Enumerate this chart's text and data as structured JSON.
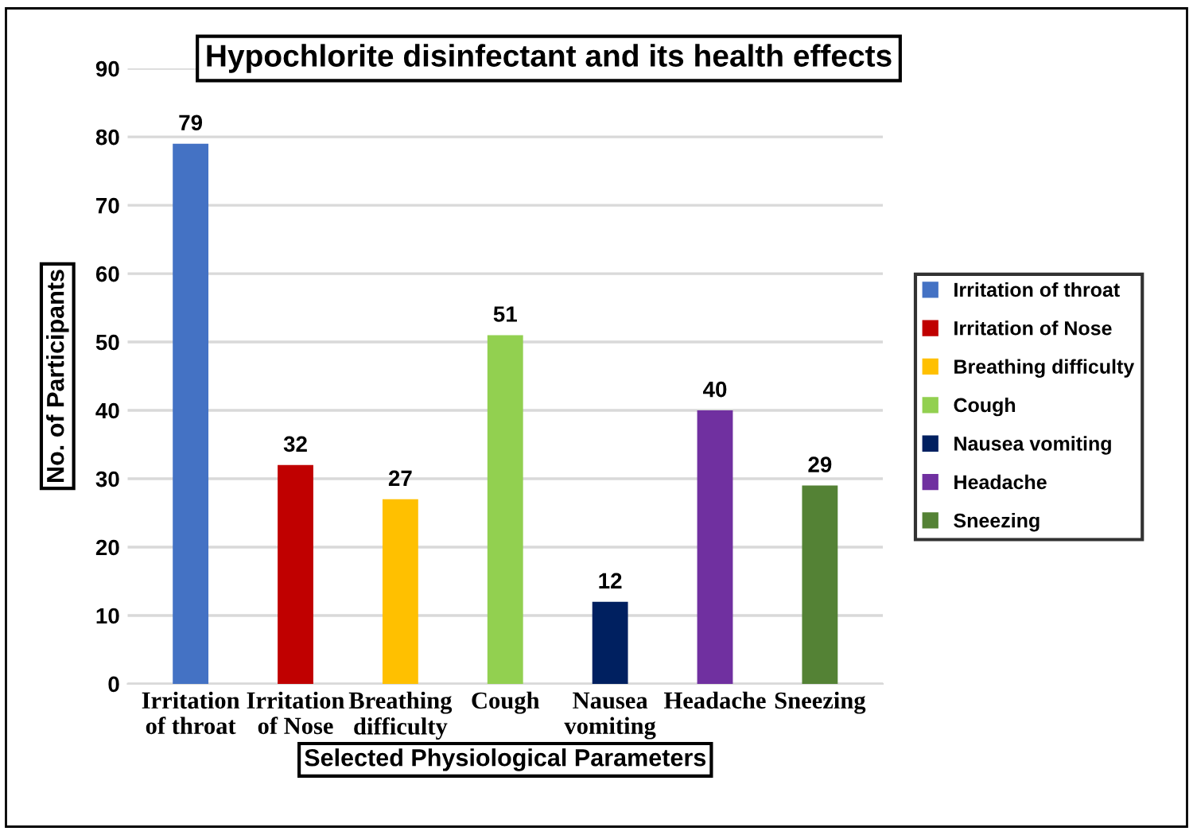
{
  "chart_data": {
    "type": "bar",
    "title": "Hypochlorite disinfectant and its health effects",
    "xlabel": "Selected Physiological Parameters",
    "ylabel": "No. of Participants",
    "categories": [
      "Irritation\nof throat",
      "Irritation\nof Nose",
      "Breathing\ndifficulty",
      "Cough",
      "Nausea\nvomiting",
      "Headache",
      "Sneezing"
    ],
    "series": [
      {
        "name": "Irritation of throat",
        "color": "#4472c4",
        "values": [
          79,
          null,
          null,
          null,
          null,
          null,
          null
        ]
      },
      {
        "name": "Irritation of Nose",
        "color": "#c00000",
        "values": [
          null,
          32,
          null,
          null,
          null,
          null,
          null
        ]
      },
      {
        "name": "Breathing difficulty",
        "color": "#ffc000",
        "values": [
          null,
          null,
          27,
          null,
          null,
          null,
          null
        ]
      },
      {
        "name": "Cough",
        "color": "#92d050",
        "values": [
          null,
          null,
          null,
          51,
          null,
          null,
          null
        ]
      },
      {
        "name": "Nausea vomiting",
        "color": "#002060",
        "values": [
          null,
          null,
          null,
          null,
          12,
          null,
          null
        ]
      },
      {
        "name": "Headache",
        "color": "#7030a0",
        "values": [
          null,
          null,
          null,
          null,
          null,
          40,
          null
        ]
      },
      {
        "name": "Sneezing",
        "color": "#548235",
        "values": [
          null,
          null,
          null,
          null,
          null,
          null,
          29
        ]
      }
    ],
    "ylim": [
      0,
      90
    ],
    "yticks": [
      0,
      10,
      20,
      30,
      40,
      50,
      60,
      70,
      80,
      90
    ],
    "grid": "y",
    "data_labels": true,
    "legend": "right"
  }
}
